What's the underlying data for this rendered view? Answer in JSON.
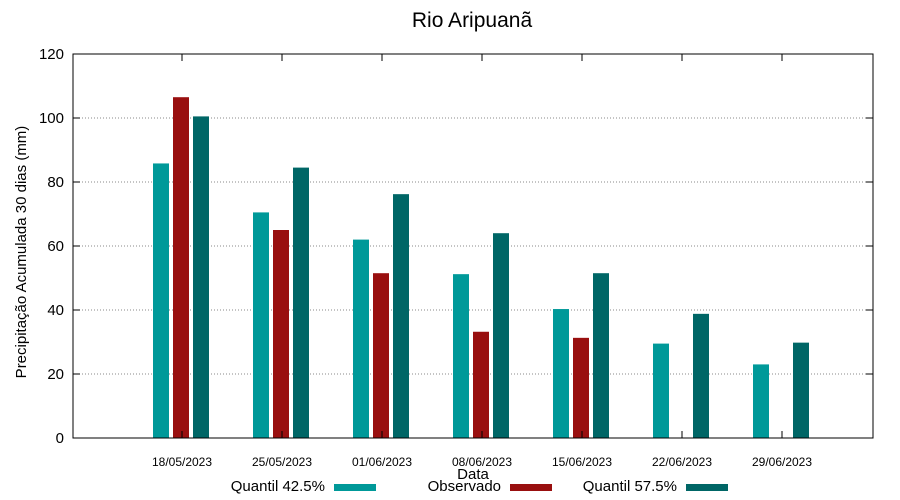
{
  "chart_data": {
    "type": "bar",
    "title": "Rio Aripuanã",
    "xlabel": "Data",
    "ylabel": "Precipitação Acumulada 30 dias (mm)",
    "ylim": [
      0,
      120
    ],
    "yticks": [
      "0",
      "20",
      "40",
      "60",
      "80",
      "100",
      "120"
    ],
    "grid": true,
    "legend_position": "bottom",
    "categories": [
      "18/05/2023",
      "25/05/2023",
      "01/06/2023",
      "08/06/2023",
      "15/06/2023",
      "22/06/2023",
      "29/06/2023"
    ],
    "series": [
      {
        "name": "Quantil 42.5%",
        "color": "#009999",
        "values": [
          85.8,
          70.5,
          62.0,
          51.2,
          40.3,
          29.5,
          23.0
        ]
      },
      {
        "name": "Observado",
        "color": "#990f0f",
        "values": [
          106.5,
          65.0,
          51.5,
          33.2,
          31.3,
          null,
          null
        ]
      },
      {
        "name": "Quantil 57.5%",
        "color": "#006666",
        "values": [
          100.5,
          84.5,
          76.2,
          64.0,
          51.5,
          38.8,
          29.8
        ]
      }
    ]
  }
}
